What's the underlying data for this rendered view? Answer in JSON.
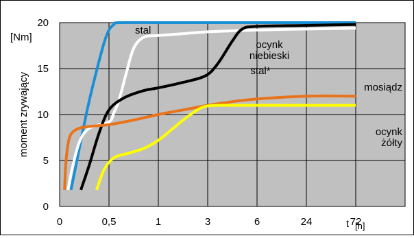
{
  "chart_data": {
    "type": "line",
    "title": "",
    "ylabel": "moment zrywający",
    "yunit": "[Nm]",
    "xlabel": "t [h]",
    "x_categories": [
      "0",
      "0,5",
      "1",
      "3",
      "6",
      "24",
      "72"
    ],
    "y_ticks": [
      "0",
      "5",
      "10",
      "15",
      "20"
    ],
    "ylim": [
      0,
      20
    ],
    "grid": true,
    "background": "#c0c0c0",
    "series": [
      {
        "name": "stal",
        "color": "#1a8fd6",
        "points": [
          [
            0.23,
            1.8
          ],
          [
            0.35,
            5
          ],
          [
            0.5,
            9
          ],
          [
            0.6,
            11.5
          ],
          [
            0.75,
            14.8
          ],
          [
            0.9,
            17.8
          ],
          [
            1.0,
            19.2
          ],
          [
            1.1,
            19.8
          ],
          [
            1.2,
            20
          ],
          [
            2,
            20
          ],
          [
            3,
            20
          ],
          [
            4,
            20
          ],
          [
            5,
            20
          ],
          [
            6,
            20
          ]
        ]
      },
      {
        "name": "ocynk niebieski",
        "color": "#ffffff",
        "points": [
          [
            0.17,
            1.8
          ],
          [
            0.25,
            4
          ],
          [
            0.4,
            7
          ],
          [
            0.6,
            8.5
          ],
          [
            1.0,
            9.2
          ],
          [
            1.1,
            10.2
          ],
          [
            1.2,
            11.5
          ],
          [
            1.35,
            14.5
          ],
          [
            1.5,
            17.2
          ],
          [
            1.7,
            18.4
          ],
          [
            2.0,
            18.6
          ],
          [
            2.5,
            18.8
          ],
          [
            3.0,
            19
          ],
          [
            4.0,
            19.2
          ],
          [
            5.0,
            19.3
          ],
          [
            6,
            19.4
          ]
        ]
      },
      {
        "name": "stal*",
        "color": "#000000",
        "points": [
          [
            0.43,
            1.8
          ],
          [
            0.6,
            4.5
          ],
          [
            0.8,
            8
          ],
          [
            1.0,
            10.5
          ],
          [
            1.3,
            11.8
          ],
          [
            1.7,
            12.6
          ],
          [
            2.0,
            12.9
          ],
          [
            2.5,
            13.5
          ],
          [
            2.95,
            14.2
          ],
          [
            3.2,
            15.5
          ],
          [
            3.5,
            18
          ],
          [
            3.7,
            19.3
          ],
          [
            4.0,
            19.6
          ],
          [
            5.0,
            19.7
          ],
          [
            6,
            19.8
          ]
        ]
      },
      {
        "name": "mosiądz",
        "color": "#e8731a",
        "points": [
          [
            0.1,
            1.8
          ],
          [
            0.13,
            5
          ],
          [
            0.2,
            7.5
          ],
          [
            0.35,
            8.4
          ],
          [
            0.6,
            8.7
          ],
          [
            1.0,
            8.9
          ],
          [
            1.5,
            9.4
          ],
          [
            2.0,
            10
          ],
          [
            2.5,
            10.5
          ],
          [
            3.0,
            11
          ],
          [
            3.5,
            11.4
          ],
          [
            4.0,
            11.7
          ],
          [
            5.0,
            12
          ],
          [
            6,
            12
          ]
        ]
      },
      {
        "name": "ocynk żółty",
        "color": "#ffff00",
        "points": [
          [
            0.75,
            1.8
          ],
          [
            0.9,
            4
          ],
          [
            1.1,
            5.3
          ],
          [
            1.4,
            5.8
          ],
          [
            1.7,
            6.3
          ],
          [
            2.0,
            7.2
          ],
          [
            2.3,
            8.5
          ],
          [
            2.6,
            9.8
          ],
          [
            2.9,
            10.8
          ],
          [
            3.2,
            11
          ],
          [
            3.5,
            11
          ],
          [
            4.0,
            11
          ],
          [
            5.0,
            11
          ],
          [
            6,
            11
          ]
        ]
      }
    ],
    "series_labels": [
      "stal",
      "ocynk\nniebieski",
      "stal*",
      "mosiądz",
      "ocynk\nżółty"
    ]
  }
}
